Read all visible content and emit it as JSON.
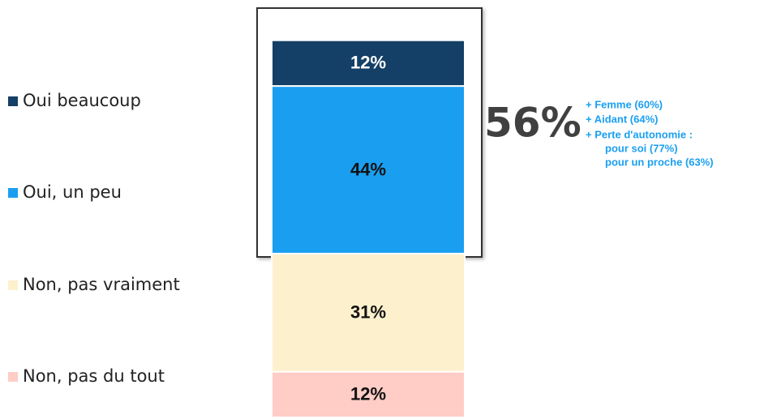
{
  "chart_data": {
    "type": "bar",
    "stacked": true,
    "categories": [
      null
    ],
    "series": [
      {
        "name": "Oui beaucoup",
        "color": "#143f66",
        "values": [
          12
        ],
        "value_labels": [
          "12%"
        ]
      },
      {
        "name": "Oui, un peu",
        "color": "#1a9ff0",
        "values": [
          44
        ],
        "value_labels": [
          "44%"
        ]
      },
      {
        "name": "Non, pas vraiment",
        "color": "#fdf0cc",
        "values": [
          31
        ],
        "value_labels": [
          "31%"
        ]
      },
      {
        "name": "Non, pas du tout",
        "color": "#ffcdc6",
        "values": [
          12
        ],
        "value_labels": [
          "12%"
        ]
      }
    ],
    "annotations": [
      "56%",
      "+ Femme (60%)",
      "+ Aidant (64%)",
      "+ Perte d'autonomie :",
      "pour soi (77%)",
      "pour un proche (63%)"
    ],
    "legend": "left"
  }
}
